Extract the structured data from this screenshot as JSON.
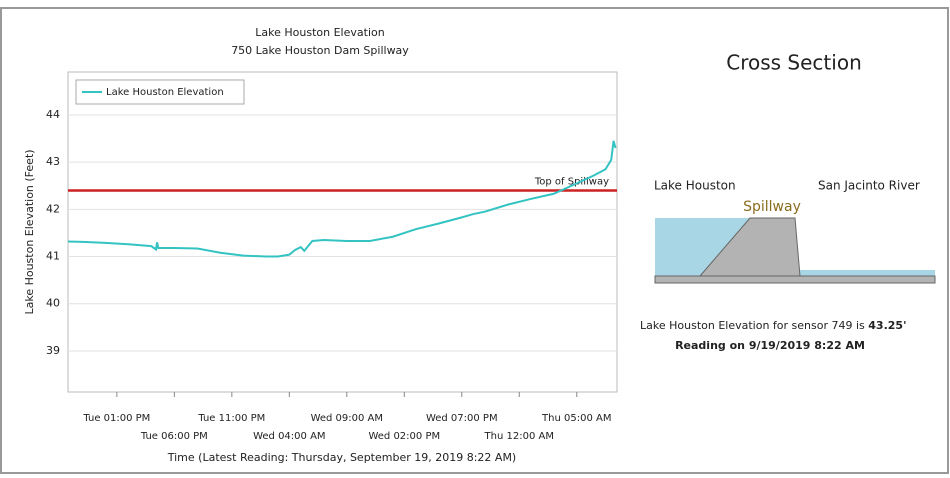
{
  "chart_data": {
    "type": "line",
    "title": "Lake Houston Elevation",
    "subtitle": "750 Lake Houston Dam Spillway",
    "y_label": "Lake Houston Elevation (Feet)",
    "x_label": "Time (Latest Reading: Thursday, September 19, 2019 8:22 AM)",
    "x": [
      8.75,
      10,
      12,
      14,
      16,
      16.4,
      16.5,
      16.6,
      18,
      20,
      22,
      24,
      26,
      27,
      28,
      28.5,
      29,
      29.3,
      30,
      31,
      33,
      35,
      37,
      39,
      41,
      43,
      44,
      45,
      47,
      49,
      51,
      53,
      54.5,
      55.5,
      56,
      56.2,
      56.37
    ],
    "series": [
      {
        "name": "Lake Houston Elevation",
        "color": "#33c3c3",
        "values": [
          41.32,
          41.31,
          41.29,
          41.26,
          41.22,
          41.15,
          41.3,
          41.18,
          41.18,
          41.17,
          41.08,
          41.02,
          41.0,
          41.0,
          41.04,
          41.14,
          41.2,
          41.12,
          41.33,
          41.35,
          41.33,
          41.33,
          41.42,
          41.58,
          41.7,
          41.83,
          41.9,
          41.95,
          42.1,
          42.22,
          42.33,
          42.55,
          42.72,
          42.85,
          43.05,
          43.45,
          43.3
        ]
      }
    ],
    "spillway_level": 42.4,
    "spillway_label": "Top of Spillway",
    "spillway_color": "#cc2222",
    "xlim": [
      8.75,
      56.5
    ],
    "xticks": [
      {
        "value": 13,
        "label": "Tue 01:00 PM"
      },
      {
        "value": 18,
        "label": "Tue 06:00 PM"
      },
      {
        "value": 23,
        "label": "Tue 11:00 PM"
      },
      {
        "value": 28,
        "label": "Wed 04:00 AM"
      },
      {
        "value": 33,
        "label": "Wed 09:00 AM"
      },
      {
        "value": 38,
        "label": "Wed 02:00 PM"
      },
      {
        "value": 43,
        "label": "Wed 07:00 PM"
      },
      {
        "value": 48,
        "label": "Thu 12:00 AM"
      },
      {
        "value": 53,
        "label": "Thu 05:00 AM"
      }
    ],
    "ylim": [
      38.13,
      44.91
    ],
    "yticks": [
      39,
      40,
      41,
      42,
      43,
      44
    ],
    "grid": true,
    "legend": "top-left"
  },
  "cross_section": {
    "title": "Cross Section",
    "left_label": "Lake Houston",
    "right_label": "San Jacinto River",
    "structure_label": "Spillway",
    "reading_prefix": "Lake Houston Elevation for sensor 749 is",
    "reading_value": "43.25'",
    "reading_time": "Reading on 9/19/2019 8:22 AM"
  }
}
